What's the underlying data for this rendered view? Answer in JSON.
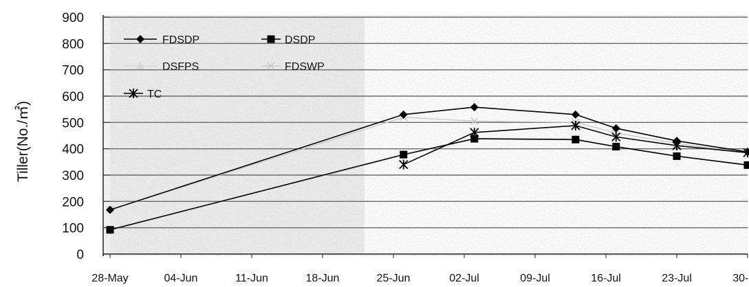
{
  "chart_data": {
    "type": "line",
    "title": "",
    "xlabel": "",
    "ylabel": "Tiller(No./㎡)",
    "ylim": [
      0,
      900
    ],
    "yticks": [
      0,
      100,
      200,
      300,
      400,
      500,
      600,
      700,
      800,
      900
    ],
    "xlim": [
      "2000-05-28",
      "2000-07-30"
    ],
    "xticks": [
      "28-May",
      "04-Jun",
      "11-Jun",
      "18-Jun",
      "25-Jun",
      "02-Jul",
      "09-Jul",
      "16-Jul",
      "23-Jul",
      "30-Jul"
    ],
    "xtick_dates": [
      "2000-05-28",
      "2000-06-04",
      "2000-06-11",
      "2000-06-18",
      "2000-06-25",
      "2000-07-02",
      "2000-07-09",
      "2000-07-16",
      "2000-07-23",
      "2000-07-30"
    ],
    "grid": true,
    "legend_position": "top-left",
    "series": [
      {
        "name": "FDSDP",
        "marker": "diamond",
        "color": "#000000",
        "points": [
          {
            "x": "2000-05-28",
            "y": 168
          },
          {
            "x": "2000-06-26",
            "y": 530
          },
          {
            "x": "2000-07-03",
            "y": 558
          },
          {
            "x": "2000-07-13",
            "y": 530
          },
          {
            "x": "2000-07-17",
            "y": 478
          },
          {
            "x": "2000-07-23",
            "y": 430
          },
          {
            "x": "2000-07-30",
            "y": 388
          }
        ]
      },
      {
        "name": "DSDP",
        "marker": "square",
        "color": "#000000",
        "points": [
          {
            "x": "2000-05-28",
            "y": 92
          },
          {
            "x": "2000-06-26",
            "y": 378
          },
          {
            "x": "2000-07-03",
            "y": 438
          },
          {
            "x": "2000-07-13",
            "y": 435
          },
          {
            "x": "2000-07-17",
            "y": 408
          },
          {
            "x": "2000-07-23",
            "y": 372
          },
          {
            "x": "2000-07-30",
            "y": 338
          }
        ]
      },
      {
        "name": "DSFPS",
        "marker": "triangle",
        "color": "#d6d6d6",
        "points": [
          {
            "x": "2000-05-28",
            "y": 92
          },
          {
            "x": "2000-06-26",
            "y": 375
          },
          {
            "x": "2000-07-03",
            "y": 440
          },
          {
            "x": "2000-07-13",
            "y": 438
          },
          {
            "x": "2000-07-17",
            "y": 408
          },
          {
            "x": "2000-07-23",
            "y": 372
          },
          {
            "x": "2000-07-30",
            "y": 340
          }
        ]
      },
      {
        "name": "FDSWP",
        "marker": "x",
        "color": "#c9c9c9",
        "points": [
          {
            "x": "2000-05-28",
            "y": 168
          },
          {
            "x": "2000-06-26",
            "y": 520
          },
          {
            "x": "2000-07-03",
            "y": 505
          },
          {
            "x": "2000-07-13",
            "y": 500
          },
          {
            "x": "2000-07-17",
            "y": 460
          },
          {
            "x": "2000-07-23",
            "y": 420
          },
          {
            "x": "2000-07-30",
            "y": 385
          }
        ]
      },
      {
        "name": "TC",
        "marker": "star",
        "color": "#000000",
        "points": [
          {
            "x": "2000-06-26",
            "y": 340
          },
          {
            "x": "2000-07-03",
            "y": 462
          },
          {
            "x": "2000-07-13",
            "y": 488
          },
          {
            "x": "2000-07-17",
            "y": 445
          },
          {
            "x": "2000-07-23",
            "y": 412
          },
          {
            "x": "2000-07-30",
            "y": 385
          }
        ]
      }
    ]
  }
}
